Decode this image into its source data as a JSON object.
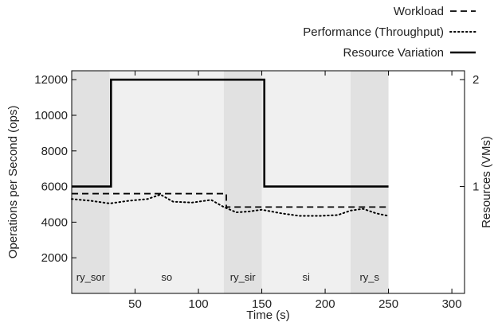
{
  "chart_data": {
    "type": "line",
    "title": "",
    "xlabel": "Time (s)",
    "ylabel": "Operations per Second (ops)",
    "y2label": "Resources (VMs)",
    "xlim": [
      0,
      310
    ],
    "ylim": [
      0,
      12500
    ],
    "y2lim": [
      0,
      2.083
    ],
    "x_ticks": [
      50,
      100,
      150,
      200,
      250,
      300
    ],
    "y_ticks": [
      2000,
      4000,
      6000,
      8000,
      10000,
      12000
    ],
    "y2_ticks": [
      1,
      2
    ],
    "grid": false,
    "legend_position": "top-right",
    "phases": [
      {
        "label": "ry_sor",
        "start": 0,
        "end": 30,
        "shade": "#e1e1e1"
      },
      {
        "label": "so",
        "start": 30,
        "end": 120,
        "shade": "#f0f0f0"
      },
      {
        "label": "ry_sir",
        "start": 120,
        "end": 150,
        "shade": "#e1e1e1"
      },
      {
        "label": "si",
        "start": 150,
        "end": 220,
        "shade": "#f0f0f0"
      },
      {
        "label": "ry_s",
        "start": 220,
        "end": 250,
        "shade": "#e1e1e1"
      }
    ],
    "series": [
      {
        "name": "Workload",
        "style": "dashed",
        "axis": "left",
        "x": [
          0,
          122,
          122,
          250
        ],
        "y": [
          5600,
          5600,
          4850,
          4850
        ]
      },
      {
        "name": "Performance (Throughput)",
        "style": "dotted",
        "axis": "left",
        "x": [
          0,
          15,
          30,
          45,
          60,
          70,
          80,
          95,
          110,
          120,
          130,
          140,
          150,
          165,
          180,
          195,
          210,
          220,
          230,
          240,
          250
        ],
        "y": [
          5300,
          5200,
          5050,
          5200,
          5300,
          5550,
          5150,
          5100,
          5250,
          4850,
          4550,
          4600,
          4700,
          4500,
          4350,
          4350,
          4400,
          4650,
          4750,
          4500,
          4350
        ]
      },
      {
        "name": "Resource Variation",
        "style": "solid",
        "axis": "right",
        "x": [
          0,
          31,
          31,
          152,
          152,
          250
        ],
        "y": [
          1,
          1,
          2,
          2,
          1,
          1
        ]
      }
    ]
  }
}
